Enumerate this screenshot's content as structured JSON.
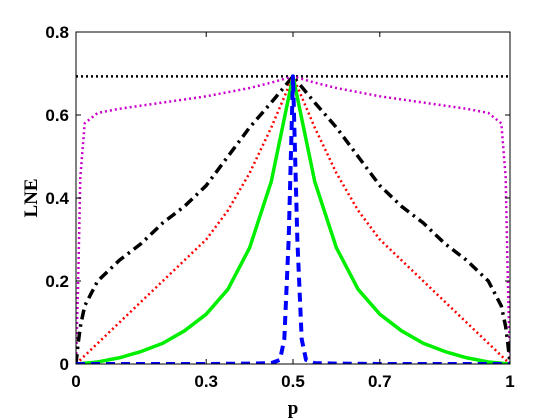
{
  "chart_data": {
    "type": "line",
    "title": "",
    "xlabel": "p",
    "ylabel": "LNE",
    "xlim": [
      0,
      1
    ],
    "ylim": [
      0,
      0.8
    ],
    "x_ticks": [
      0,
      0.3,
      0.5,
      0.7,
      1
    ],
    "x_tick_labels": [
      "0",
      "0.3",
      "0.5",
      "0.7",
      "1"
    ],
    "y_ticks": [
      0,
      0.2,
      0.4,
      0.6,
      0.8
    ],
    "y_tick_labels": [
      "0",
      "0.2",
      "0.4",
      "0.6",
      "0.8"
    ],
    "grid": false,
    "series": [
      {
        "color": "#000000",
        "style": "dotted",
        "x": [
          0,
          1
        ],
        "y": [
          0.693,
          0.693
        ]
      },
      {
        "color": "#cc00cc",
        "style": "dotted",
        "x": [
          0,
          0.005,
          0.01,
          0.02,
          0.05,
          0.1,
          0.2,
          0.3,
          0.4,
          0.45,
          0.5,
          0.55,
          0.6,
          0.7,
          0.8,
          0.9,
          0.95,
          0.98,
          0.99,
          0.995,
          1
        ],
        "y": [
          0,
          0.2,
          0.45,
          0.58,
          0.605,
          0.615,
          0.63,
          0.645,
          0.665,
          0.678,
          0.693,
          0.678,
          0.665,
          0.645,
          0.63,
          0.615,
          0.605,
          0.58,
          0.45,
          0.2,
          0
        ]
      },
      {
        "color": "#000000",
        "style": "dashdot",
        "x": [
          0,
          0.005,
          0.01,
          0.02,
          0.05,
          0.1,
          0.15,
          0.2,
          0.25,
          0.3,
          0.35,
          0.4,
          0.45,
          0.5,
          0.55,
          0.6,
          0.65,
          0.7,
          0.75,
          0.8,
          0.85,
          0.9,
          0.95,
          0.98,
          0.99,
          0.995,
          1
        ],
        "y": [
          0,
          0.05,
          0.09,
          0.14,
          0.2,
          0.25,
          0.29,
          0.34,
          0.38,
          0.43,
          0.5,
          0.57,
          0.63,
          0.693,
          0.63,
          0.57,
          0.5,
          0.43,
          0.38,
          0.34,
          0.29,
          0.25,
          0.2,
          0.14,
          0.09,
          0.05,
          0
        ]
      },
      {
        "color": "#ff0000",
        "style": "dotted",
        "x": [
          0,
          0.02,
          0.05,
          0.1,
          0.15,
          0.2,
          0.25,
          0.3,
          0.35,
          0.4,
          0.45,
          0.5,
          0.55,
          0.6,
          0.65,
          0.7,
          0.75,
          0.8,
          0.85,
          0.9,
          0.95,
          0.98,
          1
        ],
        "y": [
          0,
          0.02,
          0.05,
          0.1,
          0.15,
          0.2,
          0.25,
          0.3,
          0.37,
          0.46,
          0.57,
          0.693,
          0.57,
          0.46,
          0.37,
          0.3,
          0.25,
          0.2,
          0.15,
          0.1,
          0.05,
          0.02,
          0
        ]
      },
      {
        "color": "#00ee00",
        "style": "solid",
        "x": [
          0,
          0.05,
          0.1,
          0.15,
          0.2,
          0.25,
          0.3,
          0.35,
          0.4,
          0.45,
          0.5,
          0.55,
          0.6,
          0.65,
          0.7,
          0.75,
          0.8,
          0.85,
          0.9,
          0.95,
          1
        ],
        "y": [
          0,
          0.005,
          0.015,
          0.03,
          0.05,
          0.08,
          0.12,
          0.18,
          0.28,
          0.44,
          0.693,
          0.44,
          0.28,
          0.18,
          0.12,
          0.08,
          0.05,
          0.03,
          0.015,
          0.005,
          0
        ]
      },
      {
        "color": "#0000ff",
        "style": "dashed",
        "x": [
          0,
          0.1,
          0.2,
          0.3,
          0.4,
          0.45,
          0.47,
          0.48,
          0.49,
          0.5,
          0.51,
          0.52,
          0.53,
          0.55,
          0.6,
          0.7,
          0.8,
          0.9,
          1
        ],
        "y": [
          0,
          0,
          0,
          0,
          0.001,
          0.002,
          0.01,
          0.06,
          0.3,
          0.693,
          0.3,
          0.06,
          0.01,
          0.002,
          0.001,
          0,
          0,
          0,
          0
        ]
      }
    ]
  }
}
